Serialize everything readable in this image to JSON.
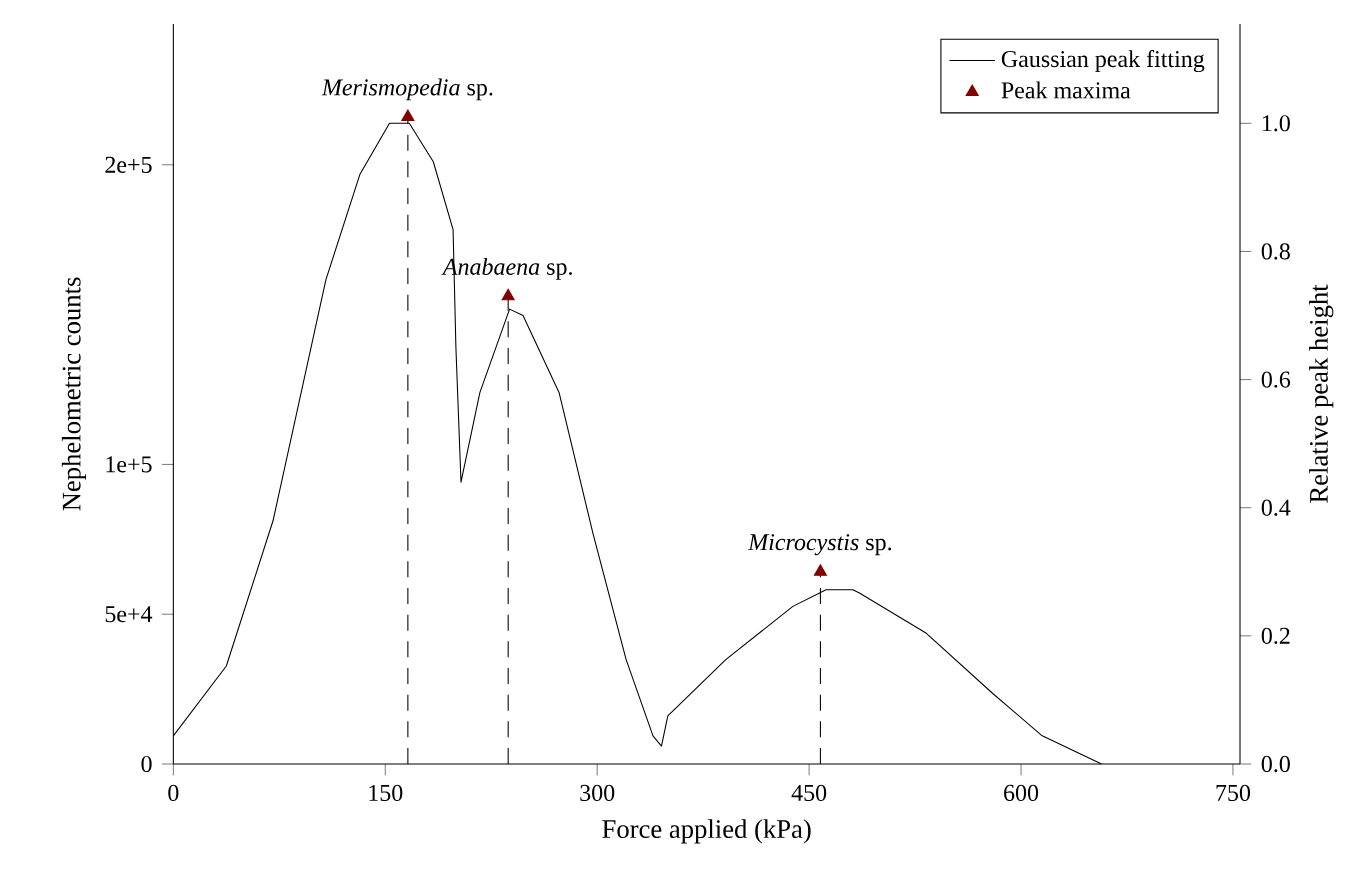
{
  "chart_data": {
    "type": "line",
    "xlabel": "Force applied (kPa)",
    "ylabel": "Nephelometric counts",
    "y2label": "Relative peak height",
    "xlim": [
      0,
      755
    ],
    "xticks": [
      0,
      150,
      300,
      450,
      600,
      750
    ],
    "ylim": [
      0,
      247000
    ],
    "yticks": [
      0,
      {
        "value": 50000,
        "label": "5e+4"
      },
      {
        "value": 100000,
        "label": "1e+5"
      },
      {
        "value": 200000,
        "label": "2e+5"
      }
    ],
    "y2lim": [
      0,
      1.155
    ],
    "y2ticks": [
      {
        "value": 0,
        "label": "0.0"
      },
      {
        "value": 0.2,
        "label": "0.2"
      },
      {
        "value": 0.4,
        "label": "0.4"
      },
      {
        "value": 0.6,
        "label": "0.6"
      },
      {
        "value": 0.8,
        "label": "0.8"
      },
      {
        "value": 1.0,
        "label": "1.0"
      }
    ],
    "legend": "top right",
    "series": [
      {
        "name": "Gaussian peak fitting",
        "axis": "y2",
        "color": "#000000",
        "marker": "none",
        "line_style": "solid",
        "x": [
          0,
          37.5,
          70.6,
          108,
          132,
          153,
          167,
          184,
          198,
          200,
          203.6,
          217,
          238,
          247.5,
          273,
          297,
          320.5,
          339.5,
          345.5,
          350,
          391,
          438.5,
          462,
          481,
          485.6,
          533,
          580,
          615,
          657
        ],
        "values": [
          0.044,
          0.153,
          0.38,
          0.756,
          0.92,
          1.0,
          1.0,
          0.94,
          0.834,
          0.65,
          0.44,
          0.58,
          0.71,
          0.7,
          0.58,
          0.36,
          0.163,
          0.044,
          0.028,
          0.075,
          0.163,
          0.246,
          0.272,
          0.272,
          0.267,
          0.204,
          0.11,
          0.044,
          0
        ]
      },
      {
        "name": "Peak maxima",
        "type": "lollipop",
        "axis": "y2",
        "color": "#800000",
        "marker": "triangle",
        "line_style": "dashed",
        "x": [
          166,
          237,
          458
        ],
        "values": [
          1.01,
          0.73,
          0.3
        ]
      }
    ],
    "annotations": [
      "*Merismopedia* sp.",
      "*Anabaena* sp.",
      "*Microcystis* sp."
    ]
  }
}
